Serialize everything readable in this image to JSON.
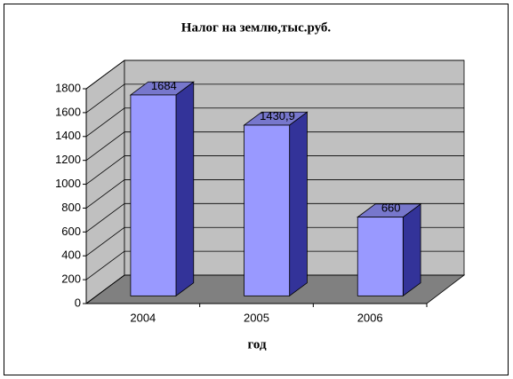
{
  "chart_data": {
    "type": "bar",
    "title": "Налог на землю,тыс.руб.",
    "x_label": "год",
    "categories": [
      "2004",
      "2005",
      "2006"
    ],
    "values": [
      1684,
      1430.9,
      660
    ],
    "value_labels": [
      "1684",
      "1430,9",
      "660"
    ],
    "color": "#9999ff",
    "ylim": [
      0,
      1800
    ],
    "yticks": [
      0,
      200,
      400,
      600,
      800,
      1000,
      1200,
      1400,
      1600,
      1800
    ],
    "grid": true
  }
}
